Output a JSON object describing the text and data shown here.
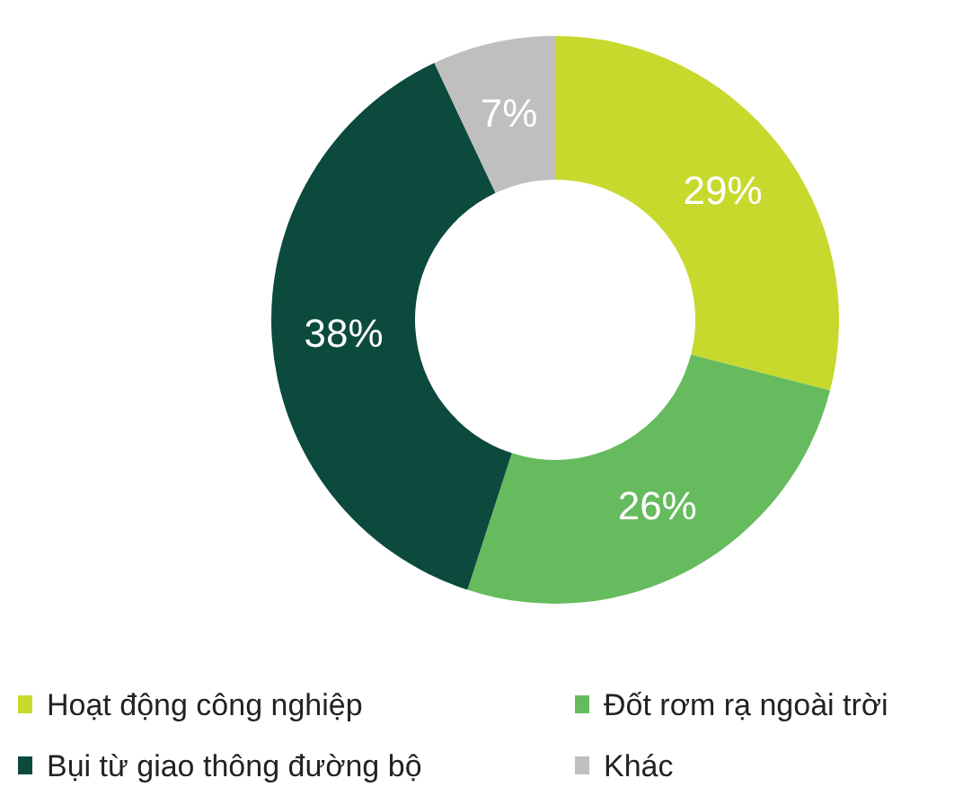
{
  "chart_data": {
    "type": "donut",
    "categories": [
      "Hoạt động công nghiệp",
      "Đốt rơm rạ ngoài trời",
      "Bụi từ giao thông đường bộ",
      "Khác"
    ],
    "values": [
      29,
      26,
      38,
      7
    ],
    "colors": [
      "#c8d92e",
      "#66bb5e",
      "#0b4a3d",
      "#bfbfbf"
    ],
    "value_labels": [
      "29%",
      "26%",
      "38%",
      "7%"
    ],
    "legend": "bottom"
  }
}
